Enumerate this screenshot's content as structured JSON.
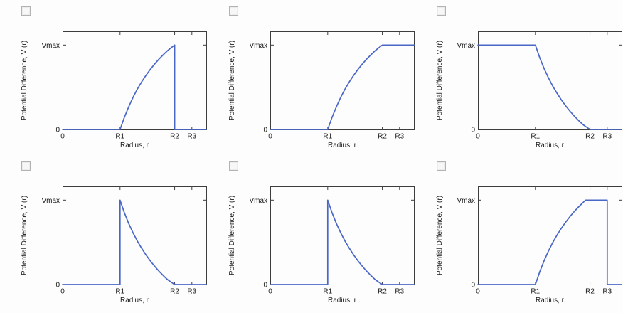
{
  "page": {
    "background": "#fdfdfd",
    "layout": "six answer-option charts in a 2x3 grid, each with an unchecked checkbox"
  },
  "chart_data": [
    {
      "type": "line",
      "title": "",
      "xlabel": "Radius, r",
      "ylabel": "Potential Difference, V (r)",
      "xticks": [
        {
          "label": "0",
          "u": 0
        },
        {
          "label": "R1",
          "u": 0.4
        },
        {
          "label": "R2",
          "u": 0.78
        },
        {
          "label": "R3",
          "u": 0.9
        }
      ],
      "yticks": [
        {
          "label": "Vmax",
          "v": 0.86
        },
        {
          "label": "0",
          "v": 0
        }
      ],
      "line_color": "#4a67c8",
      "checkbox_checked": false,
      "shape": "zero for r<R1; rises concavely to Vmax at R2; drops vertically to zero at R2; zero to R3 and beyond",
      "points": [
        [
          0,
          0
        ],
        [
          0.4,
          0
        ],
        [
          0.43,
          0.124
        ],
        [
          0.46,
          0.23
        ],
        [
          0.49,
          0.326
        ],
        [
          0.52,
          0.41
        ],
        [
          0.55,
          0.484
        ],
        [
          0.58,
          0.551
        ],
        [
          0.61,
          0.611
        ],
        [
          0.64,
          0.665
        ],
        [
          0.67,
          0.715
        ],
        [
          0.7,
          0.76
        ],
        [
          0.73,
          0.802
        ],
        [
          0.755,
          0.832
        ],
        [
          0.78,
          0.86
        ],
        [
          0.78,
          0
        ],
        [
          1,
          0
        ]
      ]
    },
    {
      "type": "line",
      "title": "",
      "xlabel": "Radius, r",
      "ylabel": "Potential Difference, V (r)",
      "xticks": [
        {
          "label": "0",
          "u": 0
        },
        {
          "label": "R1",
          "u": 0.4
        },
        {
          "label": "R2",
          "u": 0.78
        },
        {
          "label": "R3",
          "u": 0.9
        }
      ],
      "yticks": [
        {
          "label": "Vmax",
          "v": 0.86
        },
        {
          "label": "0",
          "v": 0
        }
      ],
      "line_color": "#4a67c8",
      "checkbox_checked": false,
      "shape": "zero for r<R1; rises concavely to Vmax at R2; stays constant at Vmax for r>R2",
      "points": [
        [
          0,
          0
        ],
        [
          0.4,
          0
        ],
        [
          0.43,
          0.124
        ],
        [
          0.46,
          0.23
        ],
        [
          0.49,
          0.326
        ],
        [
          0.52,
          0.41
        ],
        [
          0.55,
          0.484
        ],
        [
          0.58,
          0.551
        ],
        [
          0.61,
          0.611
        ],
        [
          0.64,
          0.665
        ],
        [
          0.67,
          0.715
        ],
        [
          0.7,
          0.76
        ],
        [
          0.73,
          0.802
        ],
        [
          0.755,
          0.832
        ],
        [
          0.78,
          0.86
        ],
        [
          1,
          0.86
        ]
      ]
    },
    {
      "type": "line",
      "title": "",
      "xlabel": "Radius, r",
      "ylabel": "Potential Difference, V (r)",
      "xticks": [
        {
          "label": "0",
          "u": 0
        },
        {
          "label": "R1",
          "u": 0.4
        },
        {
          "label": "R2",
          "u": 0.78
        },
        {
          "label": "R3",
          "u": 0.9
        }
      ],
      "yticks": [
        {
          "label": "Vmax",
          "v": 0.86
        },
        {
          "label": "0",
          "v": 0
        }
      ],
      "line_color": "#4a67c8",
      "checkbox_checked": false,
      "shape": "constant Vmax from 0 to R1; decays convexly to zero at R2; zero for r>R2",
      "points": [
        [
          0,
          0.86
        ],
        [
          0.4,
          0.86
        ],
        [
          0.43,
          0.731
        ],
        [
          0.46,
          0.623
        ],
        [
          0.49,
          0.528
        ],
        [
          0.52,
          0.444
        ],
        [
          0.55,
          0.37
        ],
        [
          0.58,
          0.303
        ],
        [
          0.61,
          0.243
        ],
        [
          0.64,
          0.188
        ],
        [
          0.67,
          0.138
        ],
        [
          0.7,
          0.093
        ],
        [
          0.73,
          0.051
        ],
        [
          0.755,
          0.025
        ],
        [
          0.78,
          0
        ],
        [
          1,
          0
        ]
      ]
    },
    {
      "type": "line",
      "title": "",
      "xlabel": "Radius, r",
      "ylabel": "Potential Difference, V (r)",
      "xticks": [
        {
          "label": "0",
          "u": 0
        },
        {
          "label": "R1",
          "u": 0.4
        },
        {
          "label": "R2",
          "u": 0.78
        },
        {
          "label": "R3",
          "u": 0.9
        }
      ],
      "yticks": [
        {
          "label": "Vmax",
          "v": 0.86
        },
        {
          "label": "0",
          "v": 0
        }
      ],
      "line_color": "#4a67c8",
      "checkbox_checked": false,
      "shape": "zero for r<R1; jumps vertically to Vmax at R1; decays convexly to zero at R2; zero for r>R2",
      "points": [
        [
          0,
          0
        ],
        [
          0.4,
          0
        ],
        [
          0.4,
          0.86
        ],
        [
          0.43,
          0.731
        ],
        [
          0.46,
          0.623
        ],
        [
          0.49,
          0.528
        ],
        [
          0.52,
          0.444
        ],
        [
          0.55,
          0.37
        ],
        [
          0.58,
          0.303
        ],
        [
          0.61,
          0.243
        ],
        [
          0.64,
          0.188
        ],
        [
          0.67,
          0.138
        ],
        [
          0.7,
          0.093
        ],
        [
          0.73,
          0.051
        ],
        [
          0.755,
          0.025
        ],
        [
          0.78,
          0
        ],
        [
          1,
          0
        ]
      ]
    },
    {
      "type": "line",
      "title": "",
      "xlabel": "Radius, r",
      "ylabel": "Potential Difference, V (r)",
      "xticks": [
        {
          "label": "0",
          "u": 0
        },
        {
          "label": "R1",
          "u": 0.4
        },
        {
          "label": "R2",
          "u": 0.78
        },
        {
          "label": "R3",
          "u": 0.9
        }
      ],
      "yticks": [
        {
          "label": "Vmax",
          "v": 0.86
        },
        {
          "label": "0",
          "v": 0
        }
      ],
      "line_color": "#4a67c8",
      "checkbox_checked": false,
      "shape": "zero for r<R1; jumps vertically to Vmax at R1; decays convexly to zero at R2; zero for r>R2",
      "points": [
        [
          0,
          0
        ],
        [
          0.4,
          0
        ],
        [
          0.4,
          0.86
        ],
        [
          0.43,
          0.731
        ],
        [
          0.46,
          0.623
        ],
        [
          0.49,
          0.528
        ],
        [
          0.52,
          0.444
        ],
        [
          0.55,
          0.37
        ],
        [
          0.58,
          0.303
        ],
        [
          0.61,
          0.243
        ],
        [
          0.64,
          0.188
        ],
        [
          0.67,
          0.138
        ],
        [
          0.7,
          0.093
        ],
        [
          0.73,
          0.051
        ],
        [
          0.755,
          0.025
        ],
        [
          0.78,
          0
        ],
        [
          1,
          0
        ]
      ]
    },
    {
      "type": "line",
      "title": "",
      "xlabel": "Radius, r",
      "ylabel": "Potential Difference, V (r)",
      "xticks": [
        {
          "label": "0",
          "u": 0
        },
        {
          "label": "R1",
          "u": 0.4
        },
        {
          "label": "R2",
          "u": 0.78
        },
        {
          "label": "R3",
          "u": 0.9
        }
      ],
      "yticks": [
        {
          "label": "Vmax",
          "v": 0.86
        },
        {
          "label": "0",
          "v": 0
        }
      ],
      "line_color": "#4a67c8",
      "checkbox_checked": false,
      "shape": "zero for r<R1; rises concavely to Vmax just before R2; constant Vmax to R3; drops vertically to zero at R3",
      "points": [
        [
          0,
          0
        ],
        [
          0.4,
          0
        ],
        [
          0.43,
          0.129
        ],
        [
          0.46,
          0.24
        ],
        [
          0.49,
          0.339
        ],
        [
          0.52,
          0.425
        ],
        [
          0.55,
          0.503
        ],
        [
          0.58,
          0.572
        ],
        [
          0.61,
          0.634
        ],
        [
          0.64,
          0.691
        ],
        [
          0.67,
          0.743
        ],
        [
          0.7,
          0.79
        ],
        [
          0.73,
          0.833
        ],
        [
          0.75,
          0.86
        ],
        [
          0.9,
          0.86
        ],
        [
          0.9,
          0
        ],
        [
          1,
          0
        ]
      ]
    }
  ],
  "style": {
    "frame_color": "#3d3d3d",
    "text_color": "#1c1c1c",
    "curve_color": "#4a67c8",
    "checkbox_border": "#b3b3b3"
  }
}
